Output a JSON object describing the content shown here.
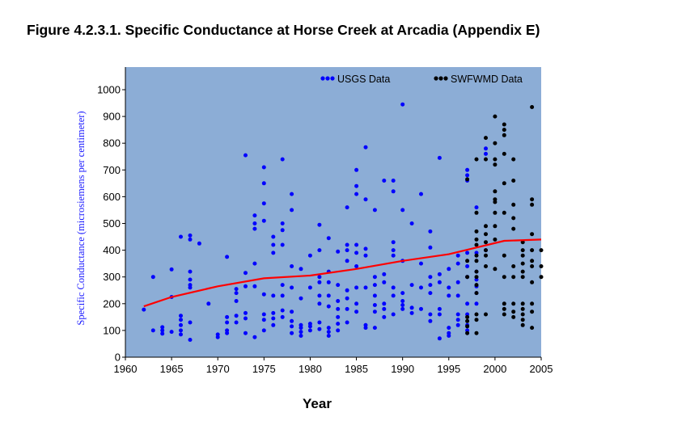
{
  "figure_title": "Figure 4.2.3.1.  Specific Conductance at Horse Creek at Arcadia (Appendix E)",
  "colors": {
    "plot_background": "#8cadd6",
    "usgs": "#0000ff",
    "swfwmd": "#000000",
    "trend": "#ff0000"
  },
  "chart_data": {
    "type": "scatter",
    "xlabel": "Year",
    "ylabel": "Specific Conductance (microsiemens per centimeter)",
    "xlim": [
      1960,
      2005
    ],
    "ylim": [
      0,
      1050
    ],
    "xticks": [
      1960,
      1965,
      1970,
      1975,
      1980,
      1985,
      1990,
      1995,
      2000,
      2005
    ],
    "yticks": [
      0,
      100,
      200,
      300,
      400,
      500,
      600,
      700,
      800,
      900,
      1000
    ],
    "grid": false,
    "legend_position": "top-right",
    "series": [
      {
        "name": "USGS Data",
        "color": "#0000ff",
        "points": [
          [
            1962,
            178
          ],
          [
            1963,
            300
          ],
          [
            1963,
            100
          ],
          [
            1964,
            112
          ],
          [
            1964,
            100
          ],
          [
            1964,
            88
          ],
          [
            1965,
            225
          ],
          [
            1965,
            328
          ],
          [
            1965,
            95
          ],
          [
            1966,
            450
          ],
          [
            1966,
            155
          ],
          [
            1966,
            140
          ],
          [
            1966,
            120
          ],
          [
            1966,
            100
          ],
          [
            1966,
            85
          ],
          [
            1967,
            455
          ],
          [
            1967,
            440
          ],
          [
            1967,
            320
          ],
          [
            1967,
            290
          ],
          [
            1967,
            270
          ],
          [
            1967,
            260
          ],
          [
            1967,
            130
          ],
          [
            1967,
            65
          ],
          [
            1968,
            425
          ],
          [
            1969,
            200
          ],
          [
            1970,
            85
          ],
          [
            1970,
            75
          ],
          [
            1971,
            375
          ],
          [
            1971,
            150
          ],
          [
            1971,
            130
          ],
          [
            1971,
            100
          ],
          [
            1971,
            90
          ],
          [
            1972,
            255
          ],
          [
            1972,
            240
          ],
          [
            1972,
            210
          ],
          [
            1972,
            155
          ],
          [
            1972,
            130
          ],
          [
            1973,
            755
          ],
          [
            1973,
            315
          ],
          [
            1973,
            265
          ],
          [
            1973,
            165
          ],
          [
            1973,
            145
          ],
          [
            1973,
            90
          ],
          [
            1974,
            530
          ],
          [
            1974,
            500
          ],
          [
            1974,
            480
          ],
          [
            1974,
            350
          ],
          [
            1974,
            265
          ],
          [
            1974,
            75
          ],
          [
            1975,
            710
          ],
          [
            1975,
            650
          ],
          [
            1975,
            575
          ],
          [
            1975,
            510
          ],
          [
            1975,
            235
          ],
          [
            1975,
            160
          ],
          [
            1975,
            140
          ],
          [
            1975,
            100
          ],
          [
            1976,
            450
          ],
          [
            1976,
            420
          ],
          [
            1976,
            390
          ],
          [
            1976,
            230
          ],
          [
            1976,
            165
          ],
          [
            1976,
            145
          ],
          [
            1976,
            120
          ],
          [
            1977,
            740
          ],
          [
            1977,
            500
          ],
          [
            1977,
            475
          ],
          [
            1977,
            420
          ],
          [
            1977,
            270
          ],
          [
            1977,
            230
          ],
          [
            1977,
            175
          ],
          [
            1977,
            150
          ],
          [
            1978,
            610
          ],
          [
            1978,
            550
          ],
          [
            1978,
            340
          ],
          [
            1978,
            260
          ],
          [
            1978,
            170
          ],
          [
            1978,
            135
          ],
          [
            1978,
            115
          ],
          [
            1978,
            90
          ],
          [
            1979,
            330
          ],
          [
            1979,
            220
          ],
          [
            1979,
            120
          ],
          [
            1979,
            110
          ],
          [
            1979,
            95
          ],
          [
            1979,
            80
          ],
          [
            1980,
            380
          ],
          [
            1980,
            260
          ],
          [
            1980,
            125
          ],
          [
            1980,
            115
          ],
          [
            1980,
            100
          ],
          [
            1981,
            495
          ],
          [
            1981,
            400
          ],
          [
            1981,
            300
          ],
          [
            1981,
            280
          ],
          [
            1981,
            230
          ],
          [
            1981,
            200
          ],
          [
            1981,
            130
          ],
          [
            1981,
            105
          ],
          [
            1982,
            445
          ],
          [
            1982,
            320
          ],
          [
            1982,
            280
          ],
          [
            1982,
            230
          ],
          [
            1982,
            190
          ],
          [
            1982,
            110
          ],
          [
            1982,
            95
          ],
          [
            1982,
            80
          ],
          [
            1983,
            395
          ],
          [
            1983,
            270
          ],
          [
            1983,
            210
          ],
          [
            1983,
            180
          ],
          [
            1983,
            150
          ],
          [
            1983,
            125
          ],
          [
            1983,
            100
          ],
          [
            1984,
            560
          ],
          [
            1984,
            420
          ],
          [
            1984,
            400
          ],
          [
            1984,
            360
          ],
          [
            1984,
            250
          ],
          [
            1984,
            220
          ],
          [
            1984,
            180
          ],
          [
            1984,
            130
          ],
          [
            1985,
            700
          ],
          [
            1985,
            640
          ],
          [
            1985,
            610
          ],
          [
            1985,
            420
          ],
          [
            1985,
            390
          ],
          [
            1985,
            340
          ],
          [
            1985,
            260
          ],
          [
            1985,
            200
          ],
          [
            1985,
            170
          ],
          [
            1986,
            785
          ],
          [
            1986,
            590
          ],
          [
            1986,
            405
          ],
          [
            1986,
            380
          ],
          [
            1986,
            260
          ],
          [
            1986,
            120
          ],
          [
            1986,
            110
          ],
          [
            1987,
            550
          ],
          [
            1987,
            300
          ],
          [
            1987,
            270
          ],
          [
            1987,
            230
          ],
          [
            1987,
            195
          ],
          [
            1987,
            170
          ],
          [
            1987,
            110
          ],
          [
            1988,
            660
          ],
          [
            1988,
            310
          ],
          [
            1988,
            280
          ],
          [
            1988,
            200
          ],
          [
            1988,
            180
          ],
          [
            1988,
            150
          ],
          [
            1989,
            660
          ],
          [
            1989,
            620
          ],
          [
            1989,
            430
          ],
          [
            1989,
            400
          ],
          [
            1989,
            380
          ],
          [
            1989,
            260
          ],
          [
            1989,
            230
          ],
          [
            1989,
            160
          ],
          [
            1990,
            945
          ],
          [
            1990,
            550
          ],
          [
            1990,
            360
          ],
          [
            1990,
            240
          ],
          [
            1990,
            210
          ],
          [
            1990,
            195
          ],
          [
            1990,
            180
          ],
          [
            1991,
            500
          ],
          [
            1991,
            270
          ],
          [
            1991,
            185
          ],
          [
            1991,
            165
          ],
          [
            1992,
            610
          ],
          [
            1992,
            350
          ],
          [
            1992,
            260
          ],
          [
            1992,
            180
          ],
          [
            1993,
            470
          ],
          [
            1993,
            410
          ],
          [
            1993,
            300
          ],
          [
            1993,
            270
          ],
          [
            1993,
            240
          ],
          [
            1993,
            160
          ],
          [
            1993,
            135
          ],
          [
            1994,
            745
          ],
          [
            1994,
            310
          ],
          [
            1994,
            280
          ],
          [
            1994,
            180
          ],
          [
            1994,
            160
          ],
          [
            1994,
            70
          ],
          [
            1995,
            330
          ],
          [
            1995,
            260
          ],
          [
            1995,
            230
          ],
          [
            1995,
            110
          ],
          [
            1995,
            90
          ],
          [
            1995,
            80
          ],
          [
            1996,
            380
          ],
          [
            1996,
            350
          ],
          [
            1996,
            280
          ],
          [
            1996,
            230
          ],
          [
            1996,
            160
          ],
          [
            1996,
            140
          ],
          [
            1996,
            120
          ],
          [
            1997,
            700
          ],
          [
            1997,
            680
          ],
          [
            1997,
            660
          ],
          [
            1997,
            390
          ],
          [
            1997,
            340
          ],
          [
            1997,
            300
          ],
          [
            1997,
            200
          ],
          [
            1997,
            160
          ],
          [
            1997,
            120
          ],
          [
            1997,
            100
          ],
          [
            1998,
            560
          ],
          [
            1998,
            390
          ],
          [
            1998,
            320
          ],
          [
            1998,
            290
          ],
          [
            1998,
            265
          ],
          [
            1998,
            240
          ],
          [
            1998,
            200
          ],
          [
            1999,
            780
          ],
          [
            1999,
            760
          ],
          [
            1999,
            400
          ]
        ]
      },
      {
        "name": "SWFWMD Data",
        "color": "#000000",
        "points": [
          [
            1997,
            665
          ],
          [
            1997,
            360
          ],
          [
            1997,
            300
          ],
          [
            1997,
            150
          ],
          [
            1997,
            135
          ],
          [
            1997,
            115
          ],
          [
            1997,
            90
          ],
          [
            1998,
            740
          ],
          [
            1998,
            540
          ],
          [
            1998,
            470
          ],
          [
            1998,
            440
          ],
          [
            1998,
            420
          ],
          [
            1998,
            380
          ],
          [
            1998,
            360
          ],
          [
            1998,
            320
          ],
          [
            1998,
            300
          ],
          [
            1998,
            270
          ],
          [
            1998,
            240
          ],
          [
            1998,
            160
          ],
          [
            1998,
            140
          ],
          [
            1998,
            90
          ],
          [
            1999,
            820
          ],
          [
            1999,
            740
          ],
          [
            1999,
            490
          ],
          [
            1999,
            460
          ],
          [
            1999,
            430
          ],
          [
            1999,
            400
          ],
          [
            1999,
            380
          ],
          [
            1999,
            340
          ],
          [
            1999,
            160
          ],
          [
            2000,
            900
          ],
          [
            2000,
            800
          ],
          [
            2000,
            740
          ],
          [
            2000,
            720
          ],
          [
            2000,
            620
          ],
          [
            2000,
            590
          ],
          [
            2000,
            580
          ],
          [
            2000,
            540
          ],
          [
            2000,
            490
          ],
          [
            2000,
            440
          ],
          [
            2000,
            330
          ],
          [
            2001,
            870
          ],
          [
            2001,
            850
          ],
          [
            2001,
            830
          ],
          [
            2001,
            760
          ],
          [
            2001,
            650
          ],
          [
            2001,
            540
          ],
          [
            2001,
            380
          ],
          [
            2001,
            300
          ],
          [
            2001,
            200
          ],
          [
            2001,
            180
          ],
          [
            2001,
            160
          ],
          [
            2002,
            740
          ],
          [
            2002,
            660
          ],
          [
            2002,
            570
          ],
          [
            2002,
            520
          ],
          [
            2002,
            480
          ],
          [
            2002,
            340
          ],
          [
            2002,
            300
          ],
          [
            2002,
            200
          ],
          [
            2002,
            170
          ],
          [
            2002,
            150
          ],
          [
            2003,
            430
          ],
          [
            2003,
            400
          ],
          [
            2003,
            380
          ],
          [
            2003,
            350
          ],
          [
            2003,
            320
          ],
          [
            2003,
            300
          ],
          [
            2003,
            200
          ],
          [
            2003,
            180
          ],
          [
            2003,
            160
          ],
          [
            2003,
            140
          ],
          [
            2003,
            120
          ],
          [
            2004,
            935
          ],
          [
            2004,
            590
          ],
          [
            2004,
            570
          ],
          [
            2004,
            460
          ],
          [
            2004,
            400
          ],
          [
            2004,
            360
          ],
          [
            2004,
            340
          ],
          [
            2004,
            280
          ],
          [
            2004,
            200
          ],
          [
            2004,
            170
          ],
          [
            2004,
            110
          ],
          [
            2005,
            400
          ],
          [
            2005,
            340
          ],
          [
            2005,
            300
          ]
        ]
      }
    ],
    "trend_line": {
      "color": "#ff0000",
      "points": [
        [
          1962,
          190
        ],
        [
          1965,
          225
        ],
        [
          1970,
          265
        ],
        [
          1975,
          295
        ],
        [
          1980,
          305
        ],
        [
          1985,
          330
        ],
        [
          1990,
          360
        ],
        [
          1995,
          385
        ],
        [
          1998,
          410
        ],
        [
          2001,
          435
        ],
        [
          2005,
          440
        ]
      ]
    }
  }
}
